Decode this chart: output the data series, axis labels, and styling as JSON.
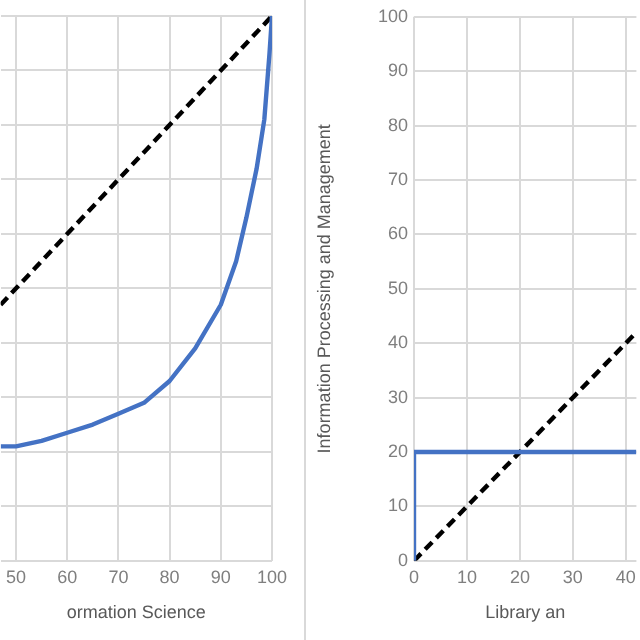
{
  "chart_data": [
    {
      "type": "line",
      "xlabel": "ormation Science",
      "xlim": [
        47,
        100
      ],
      "xticks": [
        50,
        60,
        70,
        80,
        90,
        100
      ],
      "ylim": [
        0,
        100
      ],
      "yticks": [
        {
          "value": 0,
          "label": null
        },
        {
          "value": 10,
          "label": null
        },
        {
          "value": 20,
          "label": null
        },
        {
          "value": 30,
          "label": null
        },
        {
          "value": 40,
          "label": null
        },
        {
          "value": 50,
          "label": null
        },
        {
          "value": 60,
          "label": null
        },
        {
          "value": 70,
          "label": null
        },
        {
          "value": 80,
          "label": null
        },
        {
          "value": 90,
          "label": null
        },
        {
          "value": 100,
          "label": null
        }
      ],
      "tick_labels": "x",
      "grid": true,
      "legend": false,
      "marker": "none",
      "series": [
        {
          "color": "#4472c4",
          "line_style": "solid",
          "x": [
            47,
            50,
            55,
            60,
            65,
            70,
            75,
            80,
            85,
            90,
            93,
            95,
            97,
            98.5,
            99.5,
            100
          ],
          "values": [
            21,
            21,
            22,
            23.5,
            25,
            27,
            29,
            33,
            39,
            47,
            55,
            63,
            72,
            81,
            93,
            100
          ]
        },
        {
          "color": "#000000",
          "line_style": "dashed",
          "x": [
            47,
            100
          ],
          "values": [
            47,
            100
          ]
        }
      ]
    },
    {
      "type": "line",
      "xlabel": "Library an",
      "ylabel": "Information Processing and Management",
      "xlim": [
        0,
        42
      ],
      "xticks": [
        0,
        10,
        20,
        30,
        40
      ],
      "ylim": [
        0,
        100
      ],
      "yticks": [
        0,
        10,
        20,
        30,
        40,
        50,
        60,
        70,
        80,
        90,
        100
      ],
      "grid": true,
      "legend": false,
      "marker": "none",
      "series": [
        {
          "color": "#4472c4",
          "line_style": "solid",
          "x": [
            0,
            0,
            42
          ],
          "values": [
            0,
            20,
            20
          ]
        },
        {
          "color": "#000000",
          "line_style": "dashed",
          "x": [
            0,
            42
          ],
          "values": [
            0,
            42
          ]
        }
      ]
    }
  ]
}
